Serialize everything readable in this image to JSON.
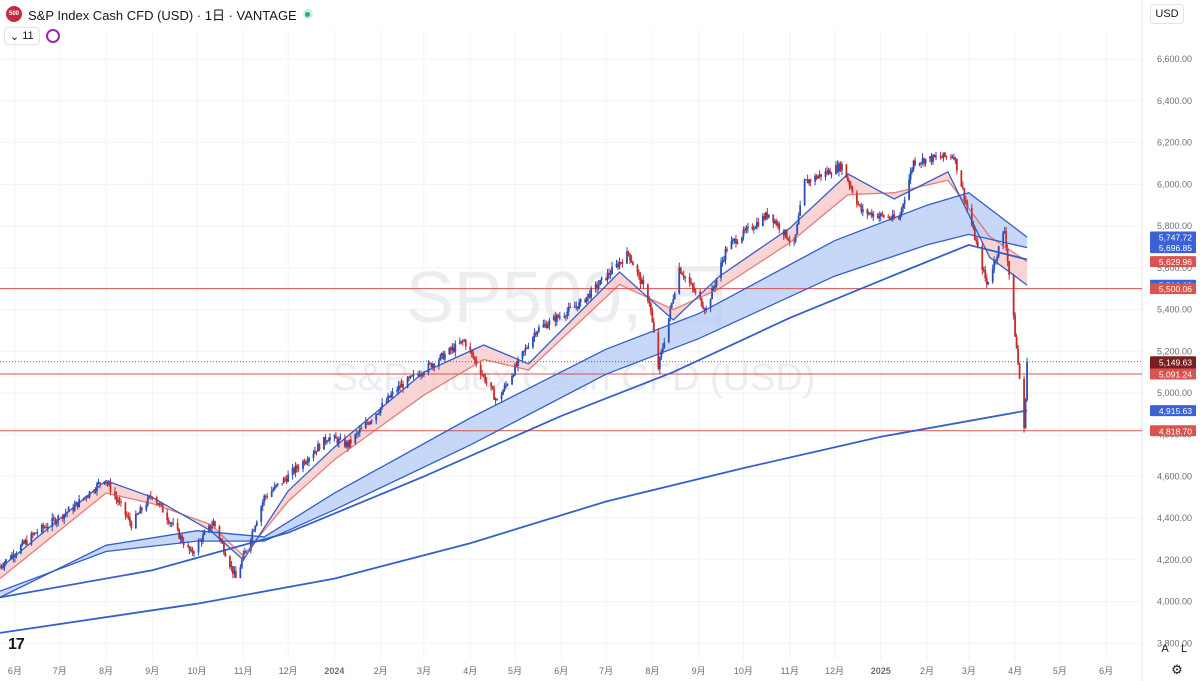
{
  "header": {
    "symbol_badge": "500",
    "title": "S&P Index Cash CFD (USD) · 1日 · VANTAGE",
    "indicator_count": "11",
    "currency": "USD"
  },
  "watermark": {
    "line1": "SP500, 日",
    "line2": "S&P Index Cash CFD (USD)"
  },
  "controls": {
    "auto_label": "A",
    "log_label": "L"
  },
  "colors": {
    "up": "#2c4eb3",
    "down": "#c72b2b",
    "ma_blue": "#2a56c6",
    "ribbon_red_fill": "#f6c9c9",
    "ribbon_blue_fill": "#b8cdf5",
    "hline": "#d9534f"
  },
  "chart_data": {
    "type": "candlestick",
    "title": "S&P Index Cash CFD (USD)",
    "timeframe": "1日",
    "x_axis": {
      "tick_labels": [
        "6月",
        "7月",
        "8月",
        "9月",
        "10月",
        "11月",
        "12月",
        "2024",
        "2月",
        "3月",
        "4月",
        "5月",
        "6月",
        "7月",
        "8月",
        "9月",
        "10月",
        "11月",
        "12月",
        "2025",
        "2月",
        "3月",
        "4月",
        "5月",
        "6月"
      ],
      "start": "2023-05-22",
      "end": "2025-06-25"
    },
    "y_axis": {
      "ylim": [
        3720,
        6740
      ],
      "tick_values": [
        3800,
        4000,
        4200,
        4400,
        4600,
        4800,
        5000,
        5200,
        5400,
        5600,
        5800,
        6000,
        6200,
        6400,
        6600
      ],
      "tick_labels": [
        "3,800.00",
        "4,000.00",
        "4,200.00",
        "4,400.00",
        "4,600.00",
        "4,800.00",
        "5,000.00",
        "5,200.00",
        "5,400.00",
        "5,600.00",
        "5,800.00",
        "6,000.00",
        "6,200.00",
        "6,400.00",
        "6,600.00"
      ]
    },
    "price_path": [
      [
        "2023-05-22",
        4170
      ],
      [
        "2023-06-15",
        4330
      ],
      [
        "2023-07-10",
        4450
      ],
      [
        "2023-07-31",
        4590
      ],
      [
        "2023-08-18",
        4370
      ],
      [
        "2023-09-01",
        4515
      ],
      [
        "2023-09-27",
        4230
      ],
      [
        "2023-10-12",
        4380
      ],
      [
        "2023-10-27",
        4110
      ],
      [
        "2023-11-15",
        4500
      ],
      [
        "2023-12-01",
        4600
      ],
      [
        "2023-12-28",
        4790
      ],
      [
        "2024-01-10",
        4750
      ],
      [
        "2024-02-12",
        5020
      ],
      [
        "2024-03-28",
        5250
      ],
      [
        "2024-04-19",
        4960
      ],
      [
        "2024-05-15",
        5300
      ],
      [
        "2024-06-14",
        5430
      ],
      [
        "2024-07-16",
        5670
      ],
      [
        "2024-07-30",
        5440
      ],
      [
        "2024-08-05",
        5120
      ],
      [
        "2024-08-19",
        5600
      ],
      [
        "2024-09-06",
        5400
      ],
      [
        "2024-09-20",
        5700
      ],
      [
        "2024-10-18",
        5860
      ],
      [
        "2024-11-04",
        5710
      ],
      [
        "2024-11-11",
        6010
      ],
      [
        "2024-12-06",
        6090
      ],
      [
        "2024-12-19",
        5870
      ],
      [
        "2025-01-13",
        5830
      ],
      [
        "2025-01-23",
        6110
      ],
      [
        "2025-02-19",
        6140
      ],
      [
        "2025-03-13",
        5520
      ],
      [
        "2025-03-25",
        5780
      ],
      [
        "2025-04-04",
        5070
      ],
      [
        "2025-04-07",
        4820
      ],
      [
        "2025-04-09",
        5150
      ]
    ],
    "moving_averages": [
      {
        "points": [
          [
            "2023-05-22",
            4110
          ],
          [
            "2023-08-01",
            4520
          ],
          [
            "2023-09-01",
            4470
          ],
          [
            "2023-10-10",
            4370
          ],
          [
            "2023-11-01",
            4220
          ],
          [
            "2023-12-01",
            4480
          ],
          [
            "2024-01-01",
            4680
          ],
          [
            "2024-03-01",
            4990
          ],
          [
            "2024-04-10",
            5160
          ],
          [
            "2024-05-10",
            5110
          ],
          [
            "2024-07-10",
            5520
          ],
          [
            "2024-08-15",
            5400
          ],
          [
            "2024-09-15",
            5500
          ],
          [
            "2024-11-01",
            5720
          ],
          [
            "2024-12-10",
            5950
          ],
          [
            "2025-01-10",
            5960
          ],
          [
            "2025-02-15",
            6020
          ],
          [
            "2025-03-15",
            5750
          ],
          [
            "2025-04-09",
            5630
          ]
        ]
      },
      {
        "points": [
          [
            "2023-05-22",
            4160
          ],
          [
            "2023-08-01",
            4580
          ],
          [
            "2023-09-01",
            4500
          ],
          [
            "2023-10-10",
            4340
          ],
          [
            "2023-11-01",
            4200
          ],
          [
            "2023-12-01",
            4530
          ],
          [
            "2024-01-01",
            4740
          ],
          [
            "2024-03-01",
            5100
          ],
          [
            "2024-04-10",
            5230
          ],
          [
            "2024-05-10",
            5140
          ],
          [
            "2024-07-10",
            5580
          ],
          [
            "2024-08-15",
            5350
          ],
          [
            "2024-09-15",
            5560
          ],
          [
            "2024-11-01",
            5790
          ],
          [
            "2024-12-10",
            6050
          ],
          [
            "2025-01-10",
            5930
          ],
          [
            "2025-02-15",
            6060
          ],
          [
            "2025-03-15",
            5650
          ],
          [
            "2025-04-09",
            5517
          ]
        ]
      },
      {
        "points": [
          [
            "2023-05-22",
            4020
          ],
          [
            "2023-08-01",
            4270
          ],
          [
            "2023-10-01",
            4340
          ],
          [
            "2023-11-15",
            4310
          ],
          [
            "2024-01-01",
            4520
          ],
          [
            "2024-04-01",
            4880
          ],
          [
            "2024-07-01",
            5210
          ],
          [
            "2024-09-01",
            5380
          ],
          [
            "2024-12-01",
            5730
          ],
          [
            "2025-02-01",
            5900
          ],
          [
            "2025-03-01",
            5960
          ],
          [
            "2025-04-09",
            5747
          ]
        ]
      },
      {
        "points": [
          [
            "2023-05-22",
            4050
          ],
          [
            "2023-08-01",
            4240
          ],
          [
            "2023-10-01",
            4290
          ],
          [
            "2023-11-15",
            4290
          ],
          [
            "2024-01-01",
            4440
          ],
          [
            "2024-04-01",
            4750
          ],
          [
            "2024-07-01",
            5090
          ],
          [
            "2024-09-01",
            5260
          ],
          [
            "2024-12-01",
            5560
          ],
          [
            "2025-02-01",
            5710
          ],
          [
            "2025-03-01",
            5760
          ],
          [
            "2025-04-09",
            5697
          ]
        ]
      },
      {
        "points": [
          [
            "2023-05-22",
            4020
          ],
          [
            "2023-09-01",
            4150
          ],
          [
            "2023-12-01",
            4330
          ],
          [
            "2024-03-01",
            4600
          ],
          [
            "2024-06-01",
            4890
          ],
          [
            "2024-08-15",
            5100
          ],
          [
            "2024-11-01",
            5360
          ],
          [
            "2025-01-15",
            5580
          ],
          [
            "2025-03-01",
            5710
          ],
          [
            "2025-04-09",
            5640
          ]
        ]
      },
      {
        "points": [
          [
            "2023-05-22",
            3850
          ],
          [
            "2023-10-01",
            3990
          ],
          [
            "2024-01-01",
            4110
          ],
          [
            "2024-04-01",
            4280
          ],
          [
            "2024-07-01",
            4480
          ],
          [
            "2024-10-01",
            4640
          ],
          [
            "2025-01-01",
            4790
          ],
          [
            "2025-04-09",
            4916
          ]
        ]
      }
    ],
    "horizontal_lines": [
      5500.06,
      5091.24,
      4818.7
    ],
    "price_labels": [
      {
        "text": "5,747.72",
        "value": 5747.72,
        "color": "#3a62d6"
      },
      {
        "text": "5,696.85",
        "value": 5696.85,
        "color": "#3a62d6"
      },
      {
        "text": "5,629.96",
        "value": 5629.96,
        "color": "#d9534f"
      },
      {
        "text": "5,516.63",
        "value": 5516.63,
        "color": "#3a62d6"
      },
      {
        "text": "5,500.06",
        "value": 5500.06,
        "color": "#d9534f"
      },
      {
        "text": "5,149.63",
        "value": 5149.63,
        "color": "#7a1f1f",
        "time": "17:51:58"
      },
      {
        "text": "5,091.24",
        "value": 5091.24,
        "color": "#d9534f"
      },
      {
        "text": "4,915.63",
        "value": 4915.63,
        "color": "#3a62d6"
      },
      {
        "text": "4,818.70",
        "value": 4818.7,
        "color": "#d9534f"
      }
    ],
    "last_price": 5149.63
  }
}
